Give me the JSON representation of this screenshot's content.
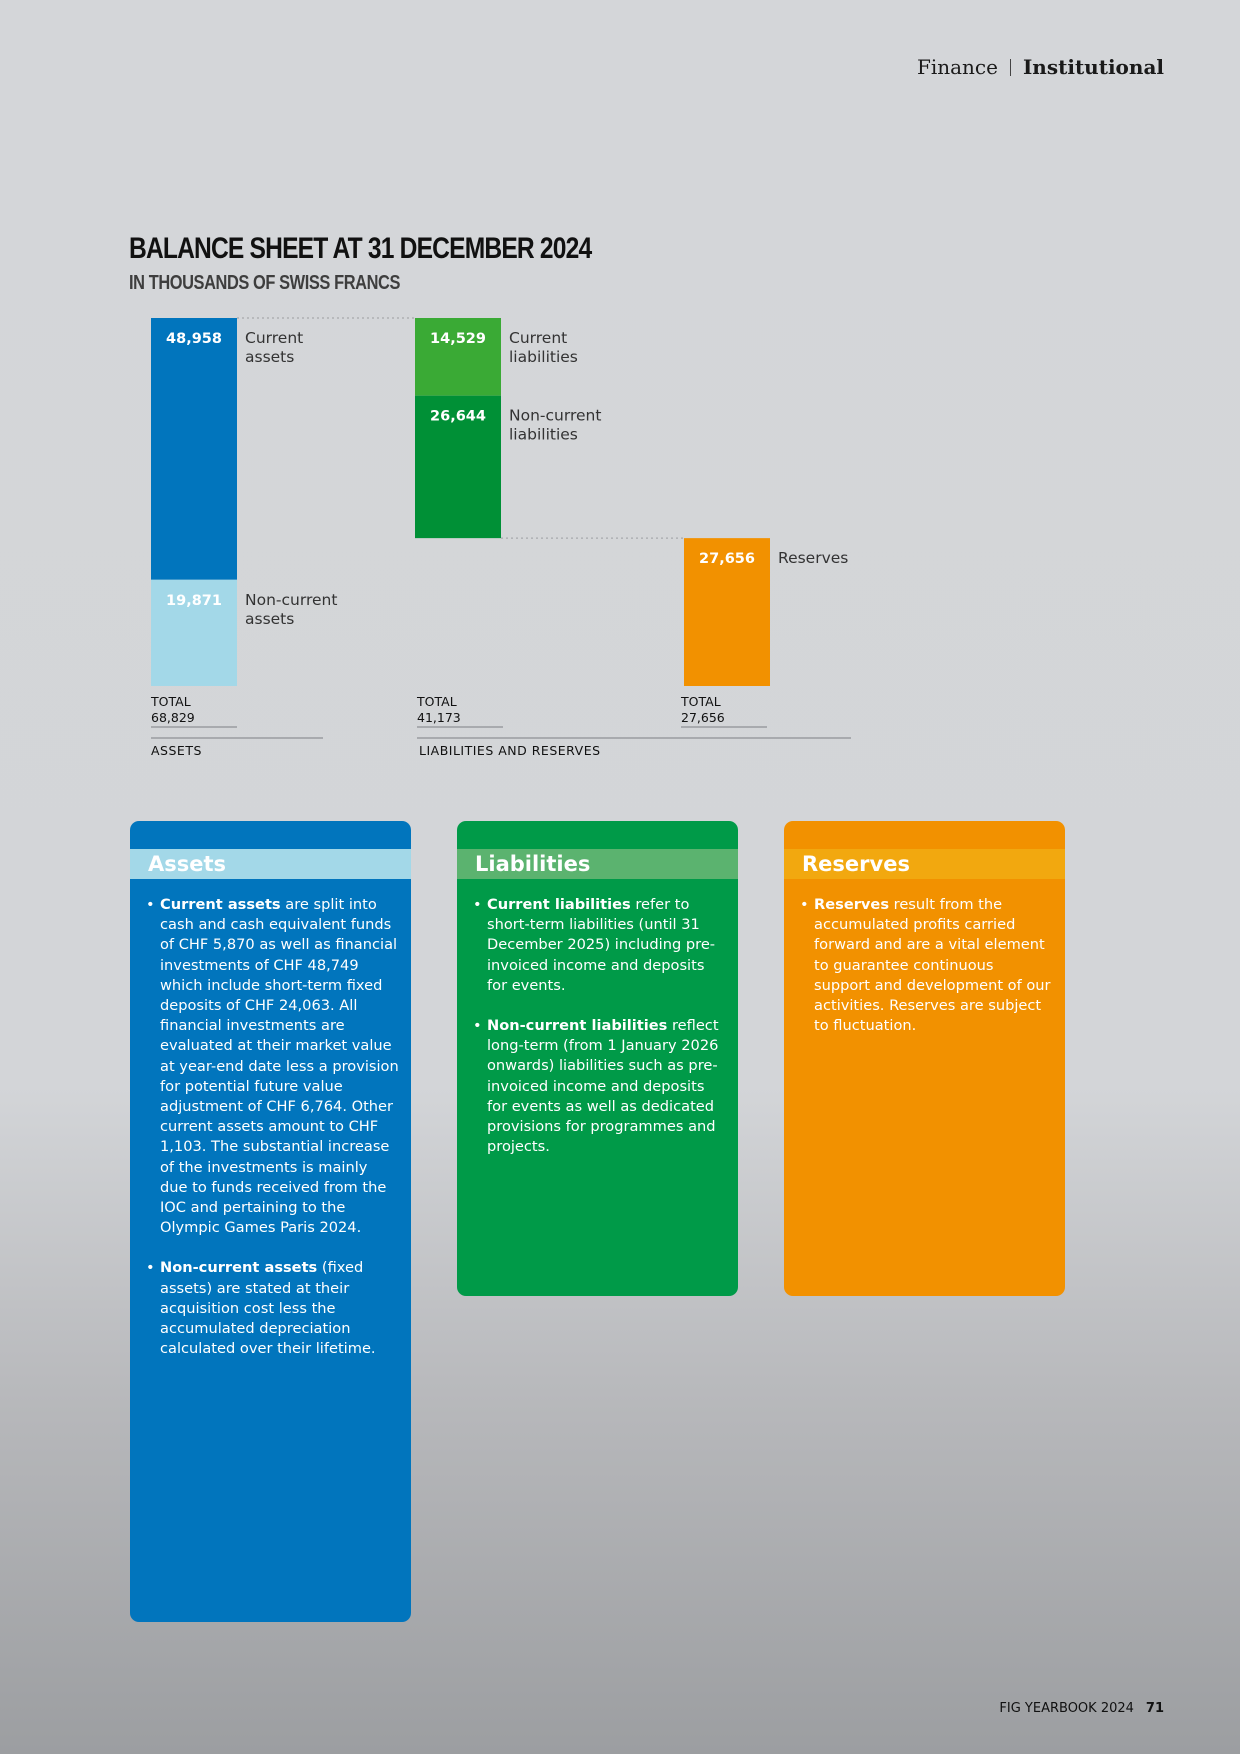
{
  "header": {
    "section": "Finance",
    "subsection": "Institutional"
  },
  "footer": {
    "publication": "FIG YEARBOOK 2024",
    "page": "71"
  },
  "chart_data": {
    "type": "bar",
    "title": "BALANCE SHEET AT 31 DECEMBER 2024",
    "subtitle": "IN THOUSANDS OF SWISS FRANCS",
    "groups": [
      {
        "label": "ASSETS",
        "stacks": [
          {
            "total_label": "TOTAL",
            "total": "68,829",
            "segments": [
              {
                "name": "Current assets",
                "label_lines": [
                  "Current",
                  "assets"
                ],
                "value": 48958,
                "value_label": "48,958",
                "color": "#0175bd"
              },
              {
                "name": "Non-current assets",
                "label_lines": [
                  "Non-current",
                  "assets"
                ],
                "value": 19871,
                "value_label": "19,871",
                "color": "#a3d8e8"
              }
            ]
          }
        ]
      },
      {
        "label": "LIABILITIES AND RESERVES",
        "stacks": [
          {
            "total_label": "TOTAL",
            "total": "41,173",
            "segments": [
              {
                "name": "Current liabilities",
                "label_lines": [
                  "Current",
                  "liabilities"
                ],
                "value": 14529,
                "value_label": "14,529",
                "color": "#3aaa35"
              },
              {
                "name": "Non-current liabilities",
                "label_lines": [
                  "Non-current",
                  "liabilities"
                ],
                "value": 26644,
                "value_label": "26,644",
                "color": "#009036"
              }
            ]
          },
          {
            "total_label": "TOTAL",
            "total": "27,656",
            "segments": [
              {
                "name": "Reserves",
                "label_lines": [
                  "Reserves"
                ],
                "value": 27656,
                "value_label": "27,656",
                "color": "#f29100"
              }
            ]
          }
        ]
      }
    ]
  },
  "panels": [
    {
      "title": "Assets",
      "colors": {
        "body": "#0175bd",
        "band": "#a3d8e8"
      },
      "items": [
        {
          "bold": "Current assets",
          "text": " are split into cash and cash equivalent funds of CHF 5,870 as well as financial investments of CHF 48,749 which include short-term fixed deposits of CHF 24,063. All financial investments are evaluated at their market value at year-end date less a provision for potential future value adjustment of CHF 6,764. Other current assets amount to CHF 1,103. The substantial increase of the investments is mainly due to funds received from the IOC and pertaining to the Olympic Games Paris 2024."
        },
        {
          "bold": "Non-current assets",
          "text": " (fixed assets) are stated at their acquisition cost less the accumulated depreciation calculated over their lifetime."
        }
      ]
    },
    {
      "title": "Liabilities",
      "colors": {
        "body": "#009a48",
        "band": "#5bb36f"
      },
      "items": [
        {
          "bold": "Current liabilities",
          "text": " refer to short-term liabilities (until 31 December 2025) including pre-invoiced income and deposits for events."
        },
        {
          "bold": "Non-current liabilities",
          "text": " reflect long-term (from 1 January 2026 onwards) liabilities such as pre-invoiced income and deposits for events as well as dedicated provisions for programmes and projects."
        }
      ]
    },
    {
      "title": "Reserves",
      "colors": {
        "body": "#f29100",
        "band": "#f2a80f"
      },
      "items": [
        {
          "bold": "Reserves",
          "text": " result from the accumulated profits carried forward and are a vital element to guarantee continuous support and development of our activities. Reserves are subject to fluctuation."
        }
      ]
    }
  ]
}
